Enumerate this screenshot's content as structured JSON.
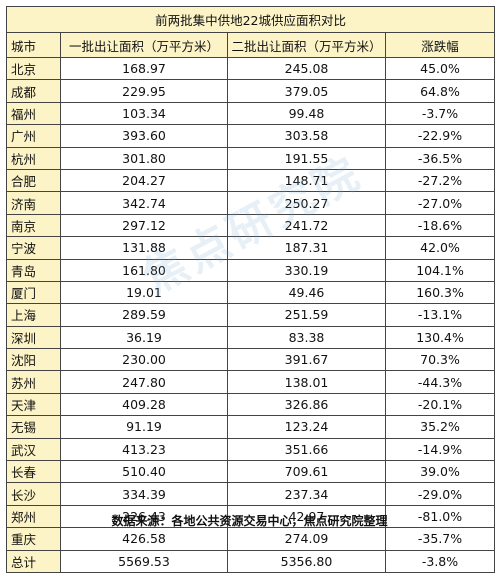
{
  "table": {
    "title": "前两批集中供地22城供应面积对比",
    "headers": [
      "城市",
      "一批出让面积（万平方米）",
      "二批出让面积（万平方米）",
      "涨跌幅"
    ],
    "rows": [
      {
        "city": "北京",
        "batch1": "168.97",
        "batch2": "245.08",
        "change": "45.0%"
      },
      {
        "city": "成都",
        "batch1": "229.95",
        "batch2": "379.05",
        "change": "64.8%"
      },
      {
        "city": "福州",
        "batch1": "103.34",
        "batch2": "99.48",
        "change": "-3.7%"
      },
      {
        "city": "广州",
        "batch1": "393.60",
        "batch2": "303.58",
        "change": "-22.9%"
      },
      {
        "city": "杭州",
        "batch1": "301.80",
        "batch2": "191.55",
        "change": "-36.5%"
      },
      {
        "city": "合肥",
        "batch1": "204.27",
        "batch2": "148.71",
        "change": "-27.2%"
      },
      {
        "city": "济南",
        "batch1": "342.74",
        "batch2": "250.27",
        "change": "-27.0%"
      },
      {
        "city": "南京",
        "batch1": "297.12",
        "batch2": "241.72",
        "change": "-18.6%"
      },
      {
        "city": "宁波",
        "batch1": "131.88",
        "batch2": "187.31",
        "change": "42.0%"
      },
      {
        "city": "青岛",
        "batch1": "161.80",
        "batch2": "330.19",
        "change": "104.1%"
      },
      {
        "city": "厦门",
        "batch1": "19.01",
        "batch2": "49.46",
        "change": "160.3%"
      },
      {
        "city": "上海",
        "batch1": "289.59",
        "batch2": "251.59",
        "change": "-13.1%"
      },
      {
        "city": "深圳",
        "batch1": "36.19",
        "batch2": "83.38",
        "change": "130.4%"
      },
      {
        "city": "沈阳",
        "batch1": "230.00",
        "batch2": "391.67",
        "change": "70.3%"
      },
      {
        "city": "苏州",
        "batch1": "247.80",
        "batch2": "138.01",
        "change": "-44.3%"
      },
      {
        "city": "天津",
        "batch1": "409.28",
        "batch2": "326.86",
        "change": "-20.1%"
      },
      {
        "city": "无锡",
        "batch1": "91.19",
        "batch2": "123.24",
        "change": "35.2%"
      },
      {
        "city": "武汉",
        "batch1": "413.23",
        "batch2": "351.66",
        "change": "-14.9%"
      },
      {
        "city": "长春",
        "batch1": "510.40",
        "batch2": "709.61",
        "change": "39.0%"
      },
      {
        "city": "长沙",
        "batch1": "334.39",
        "batch2": "237.34",
        "change": "-29.0%"
      },
      {
        "city": "郑州",
        "batch1": "226.43",
        "batch2": "42.97",
        "change": "-81.0%"
      },
      {
        "city": "重庆",
        "batch1": "426.58",
        "batch2": "274.09",
        "change": "-35.7%"
      },
      {
        "city": "总计",
        "batch1": "5569.53",
        "batch2": "5356.80",
        "change": "-3.8%"
      }
    ]
  },
  "source_note": "数据来源：各地公共资源交易中心，焦点研究院整理",
  "watermark_text": "焦点研究院",
  "colors": {
    "header_fill": "#fcf3c6",
    "border": "#444444"
  }
}
